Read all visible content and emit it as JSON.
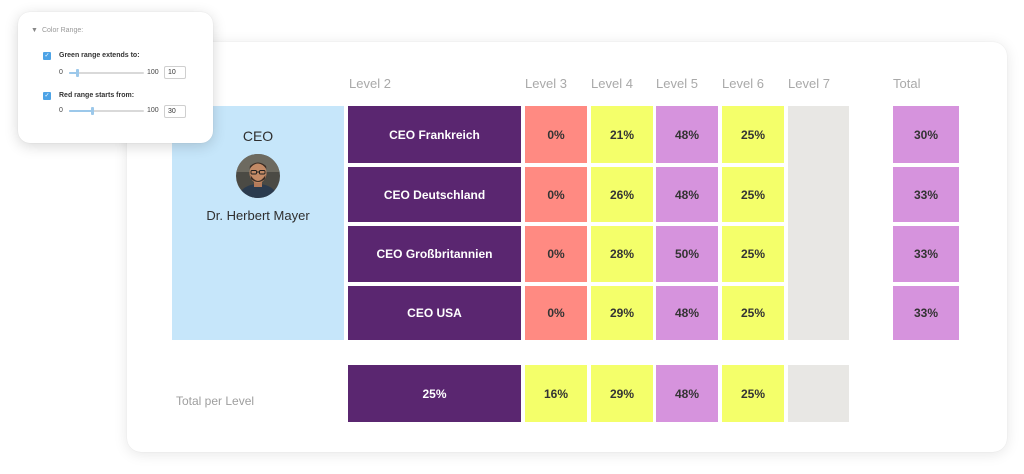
{
  "color_range": {
    "header": "Color Range:",
    "green": {
      "label": "Green range extends to:",
      "min": "0",
      "max": "100",
      "value": "10",
      "fraction": 0.1
    },
    "red": {
      "label": "Red range starts from:",
      "min": "0",
      "max": "100",
      "value": "30",
      "fraction": 0.3
    }
  },
  "columns": {
    "level2": "Level 2",
    "level3": "Level 3",
    "level4": "Level 4",
    "level5": "Level 5",
    "level6": "Level 6",
    "level7": "Level 7",
    "total": "Total"
  },
  "ceo": {
    "title": "CEO",
    "name": "Dr. Herbert Mayer"
  },
  "rows": [
    {
      "name": "CEO Frankreich",
      "l3": "0%",
      "l4": "21%",
      "l5": "48%",
      "l6": "25%",
      "total": "30%"
    },
    {
      "name": "CEO Deutschland",
      "l3": "0%",
      "l4": "26%",
      "l5": "48%",
      "l6": "25%",
      "total": "33%"
    },
    {
      "name": "CEO Großbritannien",
      "l3": "0%",
      "l4": "28%",
      "l5": "50%",
      "l6": "25%",
      "total": "33%"
    },
    {
      "name": "CEO USA",
      "l3": "0%",
      "l4": "29%",
      "l5": "48%",
      "l6": "25%",
      "total": "33%"
    }
  ],
  "total_per_level": {
    "label": "Total per Level",
    "l2": "25%",
    "l3": "16%",
    "l4": "29%",
    "l5": "48%",
    "l6": "25%"
  },
  "colors": {
    "purple": "#5a2670",
    "red": "#ff8a82",
    "yellow": "#f4ff6a",
    "lilac": "#d693dd",
    "gray": "#e8e7e4",
    "ceo_blue": "#c6e6fa",
    "checkbox_blue": "#4da3e6"
  },
  "icons": {
    "avatar": "person-photo-icon",
    "collapse": "triangle-down-icon",
    "checkbox": "check-icon"
  }
}
